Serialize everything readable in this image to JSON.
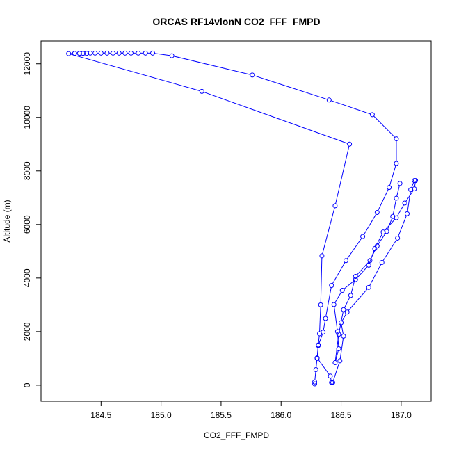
{
  "chart_data": {
    "type": "scatter",
    "title": "ORCAS RF14vlonN CO2_FFF_FMPD",
    "xlabel": "CO2_FFF_FMPD",
    "ylabel": "Altitude (m)",
    "xlim": [
      184.0,
      187.25
    ],
    "ylim": [
      -600,
      12850
    ],
    "x_ticks": [
      184.5,
      185.0,
      185.5,
      186.0,
      186.5,
      187.0
    ],
    "x_tick_labels": [
      "184.5",
      "185.0",
      "185.5",
      "186.0",
      "186.5",
      "187.0"
    ],
    "y_ticks": [
      0,
      2000,
      4000,
      6000,
      8000,
      10000,
      12000
    ],
    "y_tick_labels": [
      "0",
      "2000",
      "4000",
      "6000",
      "8000",
      "10000",
      "12000"
    ],
    "series_color": "#0000ff",
    "marker": "open-circle",
    "connected": true,
    "grid": false,
    "points": [
      [
        186.28,
        50
      ],
      [
        186.28,
        120
      ],
      [
        186.29,
        580
      ],
      [
        186.3,
        1000
      ],
      [
        186.31,
        1500
      ],
      [
        186.32,
        1920
      ],
      [
        186.33,
        3000
      ],
      [
        186.34,
        4830
      ],
      [
        186.45,
        6700
      ],
      [
        186.57,
        9000
      ],
      [
        185.34,
        10970
      ],
      [
        184.23,
        12380
      ],
      [
        184.28,
        12390
      ],
      [
        184.32,
        12390
      ],
      [
        184.35,
        12390
      ],
      [
        184.38,
        12390
      ],
      [
        184.41,
        12400
      ],
      [
        184.45,
        12400
      ],
      [
        184.5,
        12400
      ],
      [
        184.55,
        12400
      ],
      [
        184.6,
        12400
      ],
      [
        184.65,
        12400
      ],
      [
        184.7,
        12400
      ],
      [
        184.75,
        12400
      ],
      [
        184.81,
        12400
      ],
      [
        184.87,
        12400
      ],
      [
        184.93,
        12400
      ],
      [
        185.09,
        12300
      ],
      [
        185.76,
        11580
      ],
      [
        186.4,
        10650
      ],
      [
        186.76,
        10100
      ],
      [
        186.96,
        9200
      ],
      [
        186.96,
        8280
      ],
      [
        186.9,
        7380
      ],
      [
        186.8,
        6450
      ],
      [
        186.68,
        5550
      ],
      [
        186.54,
        4650
      ],
      [
        186.42,
        3720
      ],
      [
        186.37,
        2490
      ],
      [
        186.35,
        1980
      ],
      [
        186.31,
        1480
      ],
      [
        186.3,
        1020
      ],
      [
        186.41,
        340
      ],
      [
        186.42,
        100
      ],
      [
        186.43,
        100
      ],
      [
        186.49,
        910
      ],
      [
        186.52,
        1830
      ],
      [
        186.5,
        2330
      ],
      [
        186.55,
        2730
      ],
      [
        186.73,
        3650
      ],
      [
        186.84,
        4580
      ],
      [
        186.97,
        5490
      ],
      [
        187.05,
        6400
      ],
      [
        187.08,
        7300
      ],
      [
        187.11,
        7640
      ],
      [
        187.12,
        7640
      ],
      [
        187.11,
        7330
      ],
      [
        187.03,
        6800
      ],
      [
        186.96,
        6250
      ],
      [
        186.85,
        5720
      ],
      [
        186.78,
        5100
      ],
      [
        186.73,
        4480
      ],
      [
        186.62,
        3940
      ],
      [
        186.51,
        3540
      ],
      [
        186.44,
        3010
      ],
      [
        186.47,
        2000
      ],
      [
        186.48,
        1360
      ],
      [
        186.45,
        840
      ],
      [
        186.48,
        1900
      ],
      [
        186.52,
        2820
      ],
      [
        186.58,
        3350
      ],
      [
        186.62,
        4060
      ],
      [
        186.74,
        4650
      ],
      [
        186.8,
        5200
      ],
      [
        186.88,
        5740
      ],
      [
        186.93,
        6300
      ],
      [
        186.96,
        6980
      ],
      [
        186.99,
        7530
      ]
    ]
  }
}
